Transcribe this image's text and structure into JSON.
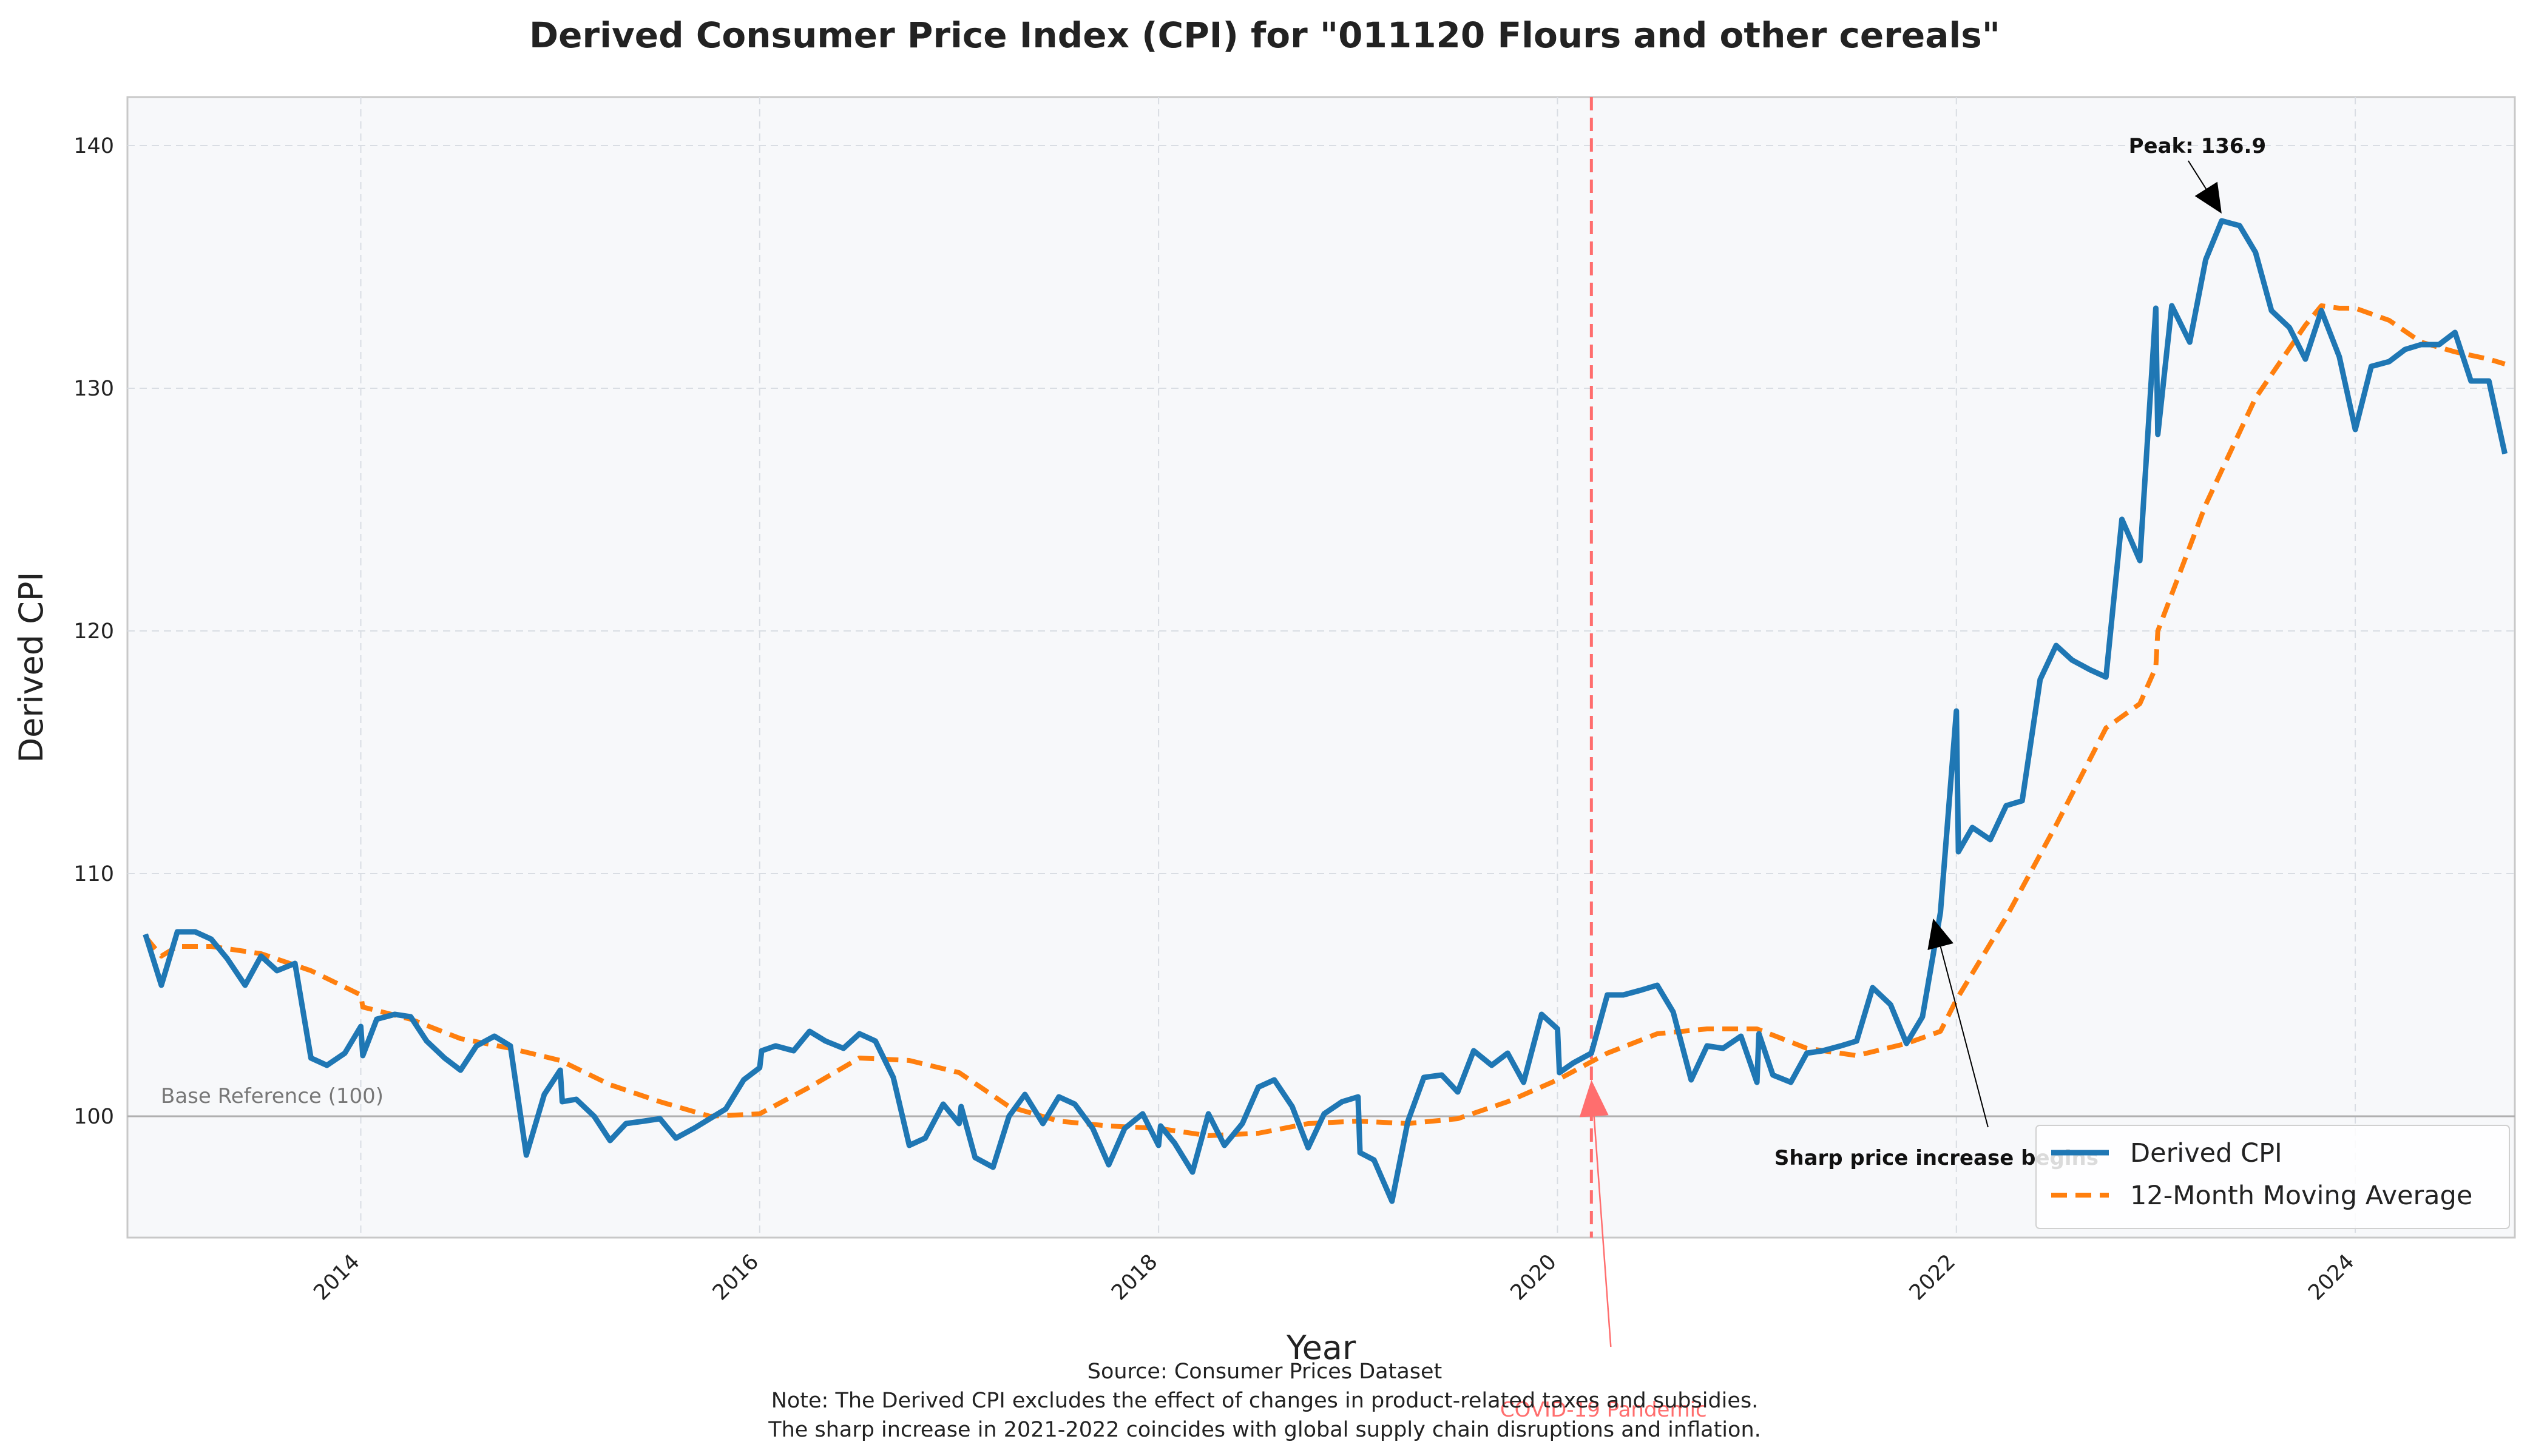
{
  "chart_data": {
    "type": "line",
    "title": "Derived Consumer Price Index (CPI) for \"011120 Flours and other cereals\"",
    "xlabel": "Year",
    "ylabel": "Derived CPI",
    "xlim": [
      2012.83,
      2024.8
    ],
    "ylim": [
      95,
      142
    ],
    "x_ticks": [
      2014,
      2016,
      2018,
      2020,
      2022,
      2024
    ],
    "y_ticks": [
      100,
      110,
      120,
      130,
      140
    ],
    "grid": true,
    "legend_position": "lower-right",
    "colors": {
      "cpi": "#1f77b4",
      "moving_average": "#ff7f0e",
      "covid_line": "#ff6e6e",
      "plot_background": "#f7f8fa",
      "base_reference": "#b0b0b0"
    },
    "series": [
      {
        "name": "Derived CPI",
        "x": [
          2012.92,
          2013.0,
          2013.08,
          2013.09,
          2013.17,
          2013.25,
          2013.33,
          2013.42,
          2013.5,
          2013.58,
          2013.67,
          2013.75,
          2013.83,
          2013.92,
          2014.0,
          2014.01,
          2014.08,
          2014.17,
          2014.25,
          2014.33,
          2014.42,
          2014.5,
          2014.58,
          2014.67,
          2014.75,
          2014.83,
          2014.92,
          2015.0,
          2015.01,
          2015.08,
          2015.17,
          2015.25,
          2015.33,
          2015.42,
          2015.5,
          2015.58,
          2015.67,
          2015.75,
          2015.83,
          2015.92,
          2016.0,
          2016.01,
          2016.08,
          2016.17,
          2016.25,
          2016.33,
          2016.42,
          2016.5,
          2016.58,
          2016.67,
          2016.75,
          2016.83,
          2016.92,
          2017.0,
          2017.01,
          2017.08,
          2017.17,
          2017.25,
          2017.33,
          2017.42,
          2017.5,
          2017.58,
          2017.67,
          2017.75,
          2017.83,
          2017.92,
          2018.0,
          2018.01,
          2018.08,
          2018.17,
          2018.25,
          2018.33,
          2018.42,
          2018.5,
          2018.58,
          2018.67,
          2018.75,
          2018.83,
          2018.92,
          2019.0,
          2019.01,
          2019.08,
          2019.17,
          2019.25,
          2019.33,
          2019.42,
          2019.5,
          2019.58,
          2019.67,
          2019.75,
          2019.83,
          2019.92,
          2020.0,
          2020.01,
          2020.08,
          2020.17,
          2020.25,
          2020.33,
          2020.42,
          2020.5,
          2020.58,
          2020.67,
          2020.75,
          2020.83,
          2020.92,
          2021.0,
          2021.01,
          2021.08,
          2021.17,
          2021.25,
          2021.33,
          2021.42,
          2021.5,
          2021.58,
          2021.67,
          2021.75,
          2021.83,
          2021.92,
          2022.0,
          2022.01,
          2022.08,
          2022.17,
          2022.25,
          2022.33,
          2022.42,
          2022.5,
          2022.58,
          2022.67,
          2022.75,
          2022.83,
          2022.92,
          2023.0,
          2023.01,
          2023.08,
          2023.17,
          2023.25,
          2023.33,
          2023.42,
          2023.5,
          2023.58,
          2023.67,
          2023.75,
          2023.83,
          2023.92,
          2024.0,
          2024.08,
          2024.17,
          2024.25,
          2024.33,
          2024.42,
          2024.5,
          2024.58,
          2024.67,
          2024.75
        ],
        "y": [
          107.5,
          105.4,
          107.6,
          107.6,
          107.6,
          107.3,
          106.5,
          105.4,
          106.6,
          106.0,
          106.3,
          102.4,
          102.1,
          102.6,
          103.7,
          102.5,
          104.0,
          104.2,
          104.1,
          103.1,
          102.4,
          101.9,
          102.9,
          103.3,
          102.9,
          98.4,
          100.9,
          101.9,
          100.6,
          100.7,
          100.0,
          99.0,
          99.7,
          99.8,
          99.9,
          99.1,
          99.5,
          99.9,
          100.3,
          101.5,
          102.0,
          102.7,
          102.9,
          102.7,
          103.5,
          103.1,
          102.8,
          103.4,
          103.1,
          101.6,
          98.8,
          99.1,
          100.5,
          99.7,
          100.4,
          98.3,
          97.9,
          100.0,
          100.9,
          99.7,
          100.8,
          100.5,
          99.5,
          98.0,
          99.5,
          100.1,
          98.8,
          99.6,
          98.9,
          97.7,
          100.1,
          98.8,
          99.7,
          101.2,
          101.5,
          100.4,
          98.7,
          100.1,
          100.6,
          100.8,
          98.5,
          98.2,
          96.5,
          99.8,
          101.6,
          101.7,
          101.0,
          102.7,
          102.1,
          102.6,
          101.4,
          104.2,
          103.6,
          101.8,
          102.2,
          102.6,
          105.0,
          105.0,
          105.2,
          105.4,
          104.3,
          101.5,
          102.9,
          102.8,
          103.3,
          101.4,
          103.4,
          101.7,
          101.4,
          102.6,
          102.7,
          102.9,
          103.1,
          105.3,
          104.6,
          103.0,
          104.1,
          108.4,
          116.7,
          110.9,
          111.9,
          111.4,
          112.8,
          113.0,
          118.0,
          119.4,
          118.8,
          118.4,
          118.1,
          124.6,
          122.9,
          133.3,
          128.1,
          133.4,
          131.9,
          135.3,
          136.9,
          136.7,
          135.6,
          133.2,
          132.5,
          131.2,
          133.2,
          131.3,
          128.3,
          130.9,
          131.1,
          131.6,
          131.8,
          131.8,
          132.3,
          130.3,
          130.3,
          127.3
        ]
      },
      {
        "name": "12-Month Moving Average",
        "x": [
          2012.92,
          2013.0,
          2013.08,
          2013.25,
          2013.5,
          2013.75,
          2014.0,
          2014.01,
          2014.25,
          2014.5,
          2014.75,
          2015.0,
          2015.25,
          2015.5,
          2015.75,
          2016.0,
          2016.25,
          2016.5,
          2016.75,
          2017.0,
          2017.25,
          2017.5,
          2017.75,
          2018.0,
          2018.25,
          2018.5,
          2018.75,
          2019.0,
          2019.25,
          2019.5,
          2019.75,
          2020.0,
          2020.25,
          2020.5,
          2020.75,
          2021.0,
          2021.25,
          2021.5,
          2021.75,
          2021.92,
          2022.0,
          2022.25,
          2022.5,
          2022.75,
          2022.92,
          2023.0,
          2023.01,
          2023.25,
          2023.5,
          2023.75,
          2023.83,
          2023.92,
          2024.0,
          2024.17,
          2024.33,
          2024.5,
          2024.67,
          2024.75
        ],
        "y": [
          107.4,
          106.6,
          107.0,
          107.0,
          106.7,
          106.0,
          105.0,
          104.5,
          104.0,
          103.2,
          102.8,
          102.3,
          101.3,
          100.6,
          100.0,
          100.1,
          101.2,
          102.4,
          102.3,
          101.8,
          100.4,
          99.8,
          99.6,
          99.5,
          99.2,
          99.3,
          99.7,
          99.8,
          99.7,
          99.9,
          100.6,
          101.5,
          102.6,
          103.4,
          103.6,
          103.6,
          102.8,
          102.5,
          103.0,
          103.5,
          104.8,
          108.2,
          112.0,
          116.0,
          117.0,
          118.5,
          120.0,
          125.2,
          129.6,
          132.6,
          133.4,
          133.3,
          133.3,
          132.8,
          131.9,
          131.5,
          131.2,
          131.0
        ]
      }
    ],
    "reference_line": {
      "y": 100,
      "label": "Base Reference (100)"
    },
    "event_line": {
      "x": 2020.17,
      "label": "COVID-19 Pandemic"
    },
    "annotations": {
      "peak": {
        "text": "Peak: 136.9",
        "x": 2023.33,
        "y": 136.9
      },
      "sharp_increase": {
        "text": "Sharp price increase begins",
        "x": 2021.92,
        "y": 108.4
      }
    },
    "footnotes": [
      "Source: Consumer Prices Dataset",
      "Note: The Derived CPI excludes the effect of changes in product-related taxes and subsidies.",
      "The sharp increase in 2021-2022 coincides with global supply chain disruptions and inflation."
    ]
  }
}
